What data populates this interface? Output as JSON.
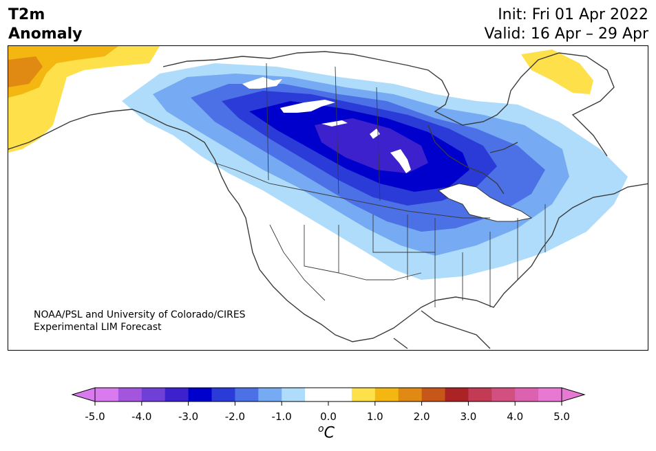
{
  "title": {
    "line1": "T2m",
    "line2": "Anomaly"
  },
  "init": "Init: Fri 01 Apr 2022",
  "valid": "Valid: 16 Apr – 29 Apr",
  "credit": {
    "line1": "NOAA/PSL and University of Colorado/CIRES",
    "line2": "Experimental LIM Forecast"
  },
  "colorbar": {
    "ticks": [
      "-5.0",
      "-4.0",
      "-3.0",
      "-2.0",
      "-1.0",
      "0.0",
      "1.0",
      "2.0",
      "3.0",
      "4.0",
      "5.0"
    ],
    "units_base": "C",
    "units_sup": "o",
    "colors": [
      "#d97aee",
      "#a455de",
      "#6f3fd8",
      "#3d21cc",
      "#0000cd",
      "#2a3bd8",
      "#4c70e6",
      "#76aaf2",
      "#aedcfa",
      "#ffffff",
      "#ffffff",
      "#fde04a",
      "#f4b610",
      "#e08a14",
      "#c75718",
      "#ab2325",
      "#c23a54",
      "#d15080",
      "#dc62b0",
      "#e779d2"
    ],
    "under_color": "#d97aee",
    "over_color": "#e779d2"
  }
}
